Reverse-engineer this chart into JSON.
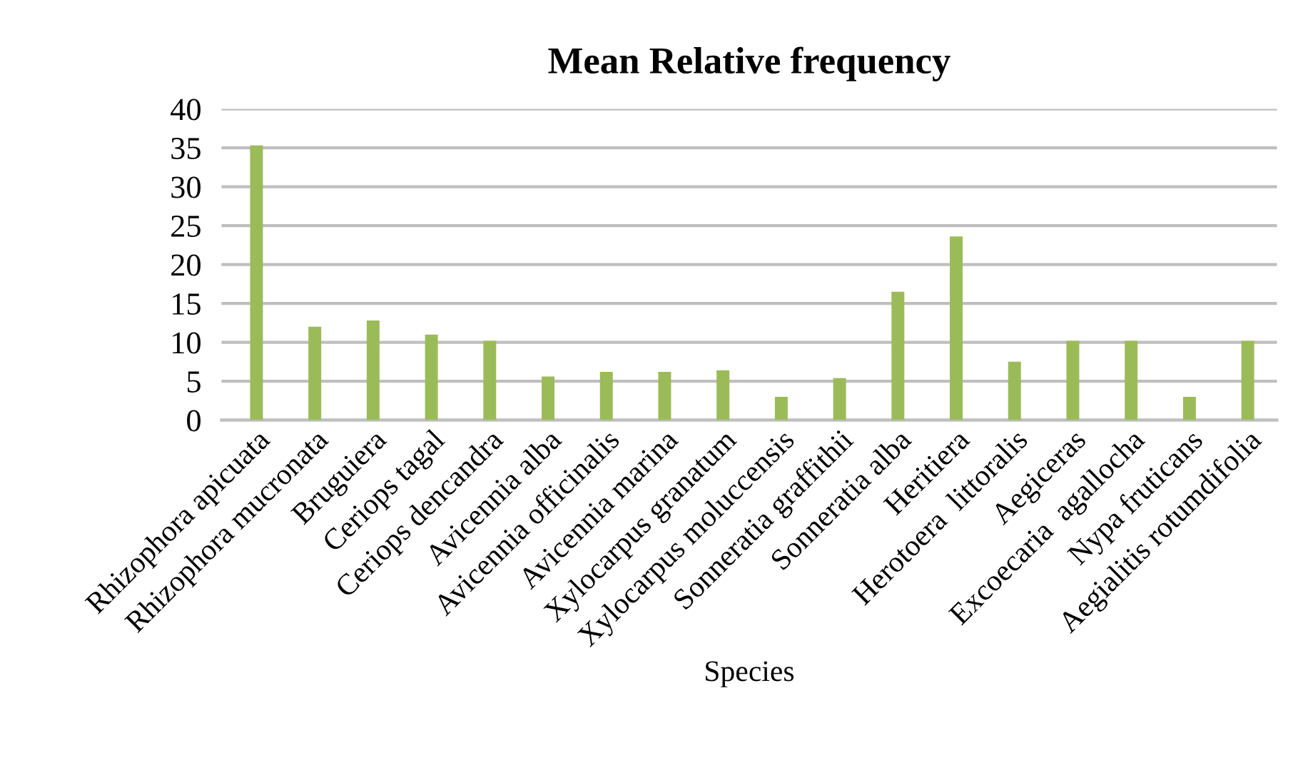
{
  "chart_data": {
    "type": "bar",
    "title": "Mean Relative frequency",
    "xlabel": "Species",
    "categories": [
      "Rhizophora apicuata",
      "Rhizophora mucronata",
      "Bruguiera",
      "Ceriops tagal",
      "Ceriops dencandra",
      "Avicennia alba",
      "Avicennia officinalis",
      "Avicennia marina",
      "Xylocarpus granatum",
      "Xylocarpus moluccensis",
      "Sonneratia graffithii",
      "Sonneratia alba",
      "Heritiera",
      "Herotoera  littoralis",
      "Aegiceras",
      "Excoecaria  agallocha",
      "Nypa fruticans",
      "Aegialitis rotumdifolia"
    ],
    "values": [
      35.3,
      12.0,
      12.8,
      11.0,
      10.2,
      5.6,
      6.2,
      6.2,
      6.4,
      3.0,
      5.4,
      16.5,
      23.6,
      7.5,
      10.2,
      10.2,
      3.0,
      10.2
    ],
    "color": "#9bbb59",
    "ylim": [
      0,
      40
    ],
    "yticks": [
      0,
      5,
      10,
      15,
      20,
      25,
      30,
      35,
      40
    ],
    "grid": "y"
  }
}
